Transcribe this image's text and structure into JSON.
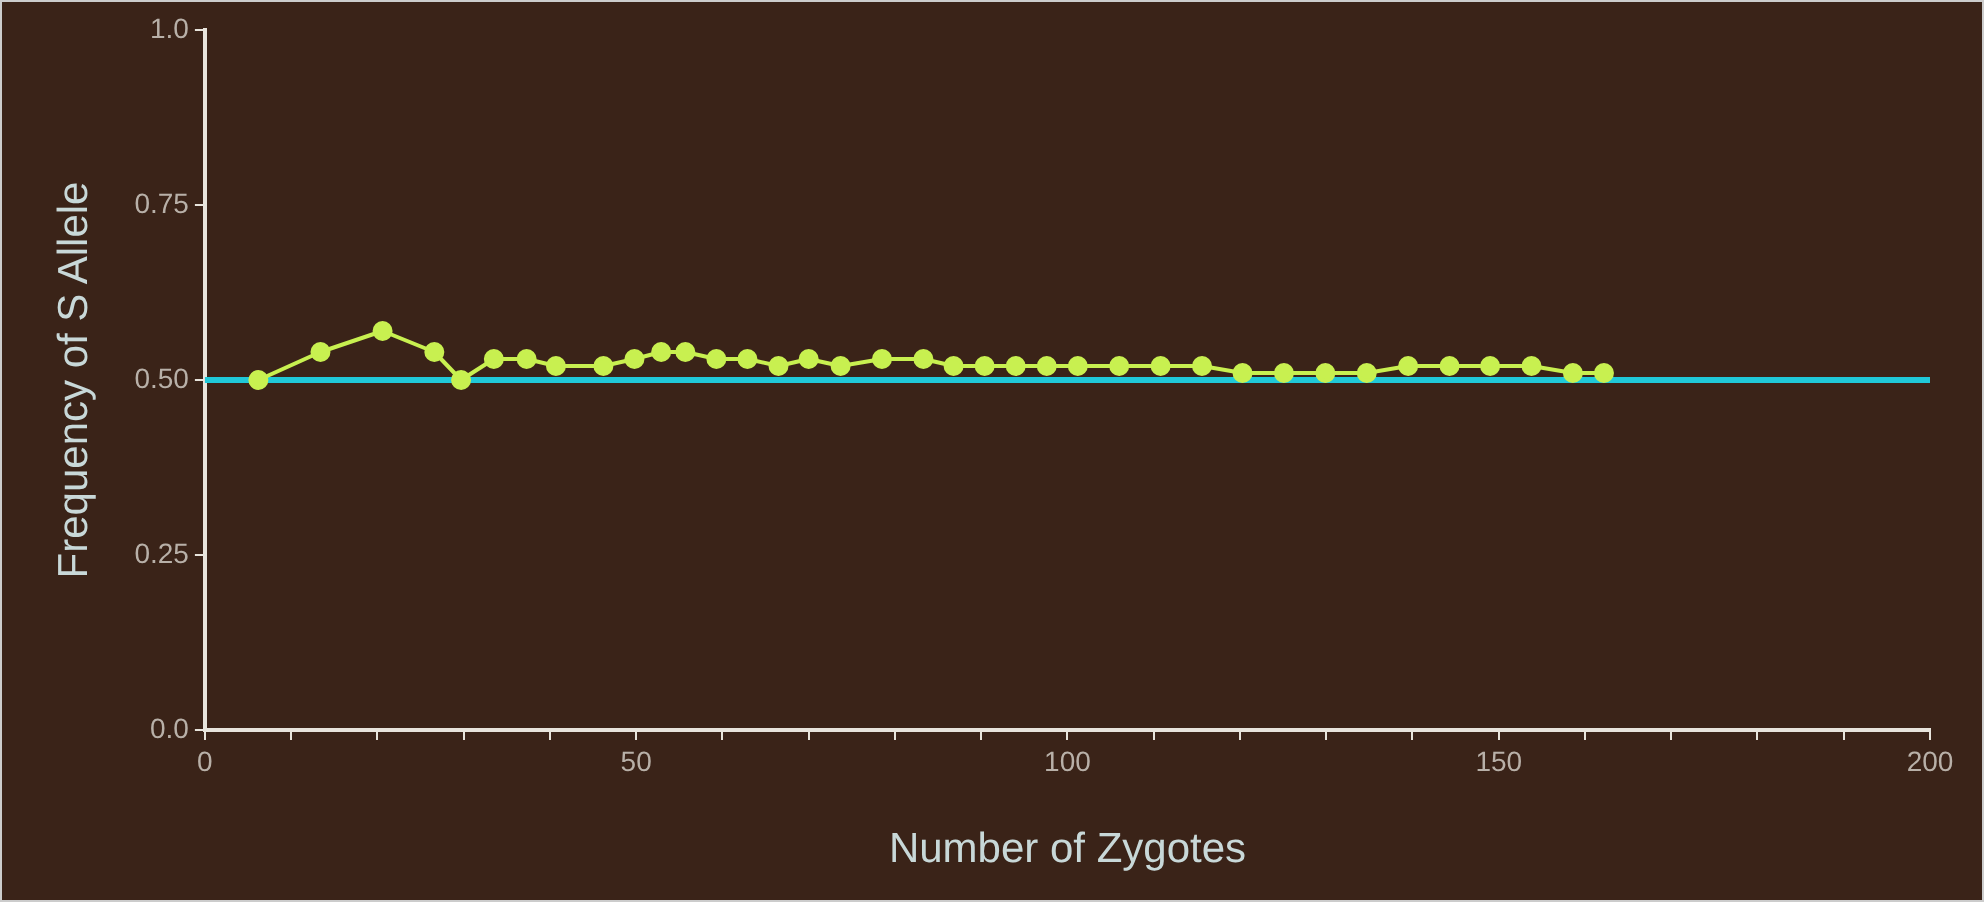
{
  "chart_data": {
    "type": "line",
    "xlabel": "Number of Zygotes",
    "ylabel": "Frequency of S Allele",
    "x": [
      6.2,
      13.4,
      20.6,
      26.6,
      29.7,
      33.5,
      37.3,
      40.7,
      46.2,
      49.8,
      52.9,
      55.7,
      59.3,
      62.9,
      66.5,
      70,
      73.7,
      78.5,
      83.3,
      86.8,
      90.4,
      94,
      97.6,
      101.2,
      106,
      110.8,
      115.6,
      120.3,
      125.1,
      129.9,
      134.7,
      139.5,
      144.3,
      149,
      153.8,
      158.6,
      162.2
    ],
    "series": [
      {
        "color": "#c8f050",
        "values": [
          0.5,
          0.54,
          0.57,
          0.54,
          0.5,
          0.53,
          0.53,
          0.52,
          0.52,
          0.53,
          0.54,
          0.54,
          0.53,
          0.53,
          0.52,
          0.53,
          0.52,
          0.53,
          0.53,
          0.52,
          0.52,
          0.52,
          0.52,
          0.52,
          0.52,
          0.52,
          0.52,
          0.51,
          0.51,
          0.51,
          0.51,
          0.52,
          0.52,
          0.52,
          0.52,
          0.51,
          0.51
        ]
      }
    ],
    "xlim": [
      0,
      200
    ],
    "ylim": [
      0,
      1
    ],
    "xticks": [
      0,
      {
        "value": 10,
        "label": null
      },
      {
        "value": 20,
        "label": null
      },
      {
        "value": 30,
        "label": null
      },
      {
        "value": 40,
        "label": null
      },
      50,
      {
        "value": 60,
        "label": null
      },
      {
        "value": 70,
        "label": null
      },
      {
        "value": 80,
        "label": null
      },
      {
        "value": 90,
        "label": null
      },
      100,
      {
        "value": 110,
        "label": null
      },
      {
        "value": 120,
        "label": null
      },
      {
        "value": 130,
        "label": null
      },
      {
        "value": 140,
        "label": null
      },
      150,
      {
        "value": 160,
        "label": null
      },
      {
        "value": 170,
        "label": null
      },
      {
        "value": 180,
        "label": null
      },
      {
        "value": 190,
        "label": null
      },
      200
    ],
    "yticks": [
      {
        "value": 0,
        "label": "0.0"
      },
      0.25,
      {
        "value": 0.5,
        "label": "0.50"
      },
      0.75,
      {
        "value": 1,
        "label": "1.0"
      }
    ],
    "ref_lines": [
      {
        "axis": "y",
        "value": 0.5,
        "color": "#20c8d8"
      }
    ],
    "grid": false,
    "legend": false,
    "marker": "circle",
    "line_style": "solid"
  }
}
